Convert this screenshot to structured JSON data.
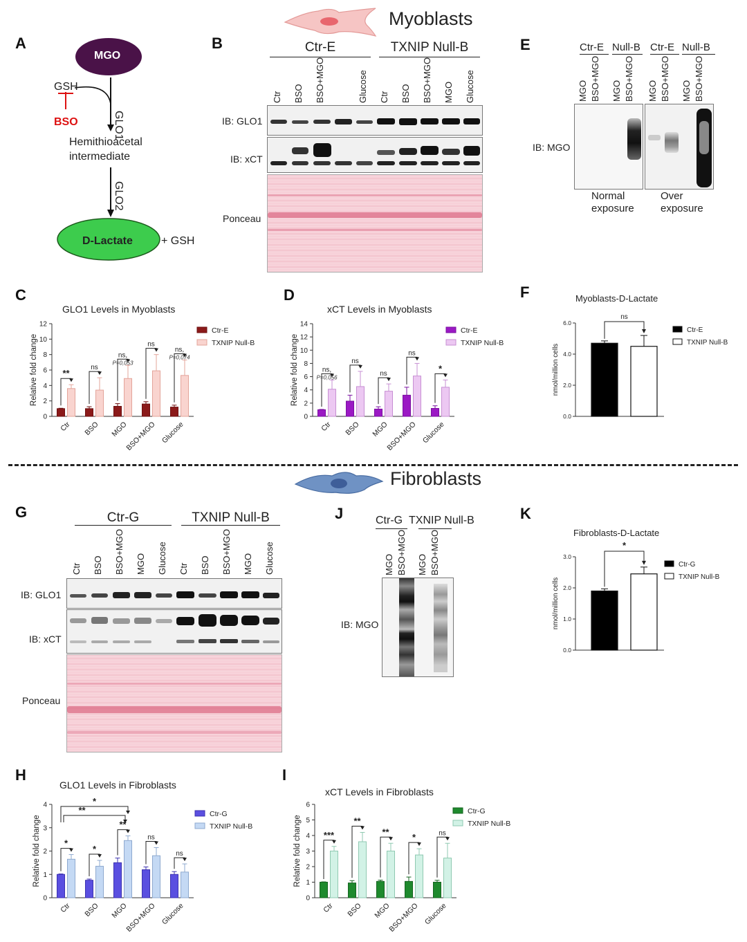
{
  "panelA": {
    "letter": "A",
    "mgo": "MGO",
    "gsh": "GSH",
    "bso": "BSO",
    "glo1": "GLO1",
    "glo2": "GLO2",
    "intermediate_l1": "Hemithioacetal",
    "intermediate_l2": "intermediate",
    "dlactate": "D-Lactate",
    "plus_gsh": "+ GSH"
  },
  "section_myoblasts": "Myoblasts",
  "section_fibroblasts": "Fibroblasts",
  "panelB": {
    "letter": "B",
    "group1": "Ctr-E",
    "group2": "TXNIP Null-B",
    "lanes": [
      "Ctr",
      "BSO",
      "BSO+MGO",
      "",
      "Glucose",
      "Ctr",
      "BSO",
      "BSO+MGO",
      "MGO",
      "Glucose"
    ],
    "ib_glo1": "IB: GLO1",
    "ib_xct": "IB: xCT",
    "ponceau": "Ponceau"
  },
  "panelE": {
    "letter": "E",
    "groups": [
      "Ctr-E",
      "Null-B",
      "Ctr-E",
      "Null-B"
    ],
    "lanes": [
      "MGO",
      "BSO+MGO",
      "MGO",
      "BSO+MGO",
      "MGO",
      "BSO+MGO",
      "MGO",
      "BSO+MGO"
    ],
    "ib_mgo": "IB: MGO",
    "cap1_l1": "Normal",
    "cap1_l2": "exposure",
    "cap2_l1": "Over",
    "cap2_l2": "exposure"
  },
  "panelG": {
    "letter": "G",
    "group1": "Ctr-G",
    "group2": "TXNIP Null-B",
    "lanes": [
      "Ctr",
      "BSO",
      "BSO+MGO",
      "MGO",
      "Glucose",
      "Ctr",
      "BSO",
      "BSO+MGO",
      "MGO",
      "Glucose"
    ],
    "ib_glo1": "IB: GLO1",
    "ib_xct": "IB: xCT",
    "ponceau": "Ponceau"
  },
  "panelJ": {
    "letter": "J",
    "group1": "Ctr-G",
    "group2": "TXNIP Null-B",
    "lanes": [
      "MGO",
      "BSO+MGO",
      "MGO",
      "BSO+MGO"
    ],
    "ib_mgo": "IB: MGO"
  },
  "chart_data": [
    {
      "panel": "C",
      "type": "bar",
      "title": "GLO1 Levels in Myoblasts",
      "ylabel": "Relative fold change",
      "ylim": [
        0,
        12
      ],
      "yticks": [
        0,
        2,
        4,
        6,
        8,
        10,
        12
      ],
      "categories": [
        "Ctr",
        "BSO",
        "MGO",
        "BSO+MGO",
        "Glucose"
      ],
      "series": [
        {
          "name": "Ctr-E",
          "color": "#8b1a1a",
          "edge": "#6e1010",
          "values": [
            1,
            1,
            1.3,
            1.6,
            1.2
          ],
          "errors": [
            0.05,
            0.25,
            0.35,
            0.3,
            0.25
          ]
        },
        {
          "name": "TXNIP Null-B",
          "color": "#f9d4cf",
          "edge": "#e3a49a",
          "values": [
            3.6,
            3.4,
            4.9,
            5.9,
            5.3
          ],
          "errors": [
            0.5,
            1.6,
            1.7,
            2.1,
            2.0
          ]
        }
      ],
      "significance": [
        "**",
        "ns",
        "ns,",
        "ns",
        "ns,"
      ],
      "pvalues": [
        "",
        "",
        "P=0,053",
        "",
        "P=0,074"
      ]
    },
    {
      "panel": "D",
      "type": "bar",
      "title": "xCT Levels in Myoblasts",
      "ylabel": "Relative fold change",
      "ylim": [
        0,
        14
      ],
      "yticks": [
        0,
        2,
        4,
        6,
        8,
        10,
        12,
        14
      ],
      "categories": [
        "Ctr",
        "BSO",
        "MGO",
        "BSO+MGO",
        "Glucose"
      ],
      "series": [
        {
          "name": "Ctr-E",
          "color": "#9b19c4",
          "edge": "#7a0fa0",
          "values": [
            1,
            2.3,
            1.1,
            3.2,
            1.2
          ],
          "errors": [
            0.05,
            0.9,
            0.35,
            1.2,
            0.4
          ]
        },
        {
          "name": "TXNIP Null-B",
          "color": "#ecc8f2",
          "edge": "#c78fd3",
          "values": [
            4.1,
            4.5,
            3.8,
            6.1,
            4.4
          ],
          "errors": [
            1.4,
            2.3,
            1.1,
            1.9,
            1.1
          ]
        }
      ],
      "significance": [
        "ns,",
        "ns",
        "ns",
        "ns",
        "*"
      ],
      "pvalues": [
        "P=0,056",
        "",
        "",
        "",
        ""
      ]
    },
    {
      "panel": "F",
      "type": "bar",
      "title": "Myoblasts-D-Lactate",
      "ylabel": "nmol/million cells",
      "ylim": [
        0,
        6
      ],
      "yticks": [
        0,
        2,
        4,
        6
      ],
      "ytick_labels": [
        "0.0",
        "2.0",
        "4.0",
        "6.0"
      ],
      "categories": [
        "Ctr-E",
        "TXNIP Null-B"
      ],
      "values": [
        4.7,
        4.5
      ],
      "errors": [
        0.15,
        0.7
      ],
      "colors": [
        "#000000",
        "#ffffff"
      ],
      "significance": "ns"
    },
    {
      "panel": "K",
      "type": "bar",
      "title": "Fibroblasts-D-Lactate",
      "ylabel": "nmol/million cells",
      "ylim": [
        0,
        3
      ],
      "yticks": [
        0,
        1,
        2,
        3
      ],
      "ytick_labels": [
        "0.0",
        "1.0",
        "2.0",
        "3.0"
      ],
      "categories": [
        "Ctr-G",
        "TXNIP Null-B"
      ],
      "values": [
        1.9,
        2.45
      ],
      "errors": [
        0.07,
        0.22
      ],
      "colors": [
        "#000000",
        "#ffffff"
      ],
      "significance": "*"
    },
    {
      "panel": "H",
      "type": "bar",
      "title": "GLO1 Levels in Fibroblasts",
      "ylabel": "Relative fold change",
      "ylim": [
        0,
        4
      ],
      "yticks": [
        0,
        1,
        2,
        3,
        4
      ],
      "categories": [
        "Ctr",
        "BSO",
        "MGO",
        "BSO+MGO",
        "Glucose"
      ],
      "series": [
        {
          "name": "Ctr-G",
          "color": "#5a4fe0",
          "edge": "#3c32b0",
          "values": [
            1,
            0.75,
            1.5,
            1.2,
            1.0
          ],
          "errors": [
            0.02,
            0.05,
            0.2,
            0.12,
            0.12
          ]
        },
        {
          "name": "TXNIP Null-B",
          "color": "#c4d9f4",
          "edge": "#8ea9cf",
          "values": [
            1.65,
            1.35,
            2.45,
            1.8,
            1.1
          ],
          "errors": [
            0.2,
            0.25,
            0.2,
            0.35,
            0.35
          ]
        }
      ],
      "significance": [
        "*",
        "*",
        "**",
        "ns",
        "ns"
      ],
      "cross_comparisons": [
        "*",
        "**"
      ]
    },
    {
      "panel": "I",
      "type": "bar",
      "title": "xCT Levels in Fibroblasts",
      "ylabel": "Relative fold change",
      "ylim": [
        0,
        6
      ],
      "yticks": [
        0,
        1,
        2,
        3,
        4,
        5,
        6
      ],
      "categories": [
        "Ctr",
        "BSO",
        "MGO",
        "BSO+MGO",
        "Glucose"
      ],
      "series": [
        {
          "name": "Ctr-G",
          "color": "#1f8a2e",
          "edge": "#156420",
          "values": [
            1,
            0.95,
            1.05,
            1.05,
            1.0
          ],
          "errors": [
            0.02,
            0.15,
            0.08,
            0.28,
            0.12
          ]
        },
        {
          "name": "TXNIP Null-B",
          "color": "#d2f2e6",
          "edge": "#8fc9b1",
          "values": [
            3.0,
            3.6,
            3.0,
            2.75,
            2.55
          ],
          "errors": [
            0.3,
            0.6,
            0.5,
            0.4,
            0.95
          ]
        }
      ],
      "significance": [
        "***",
        "**",
        "**",
        "*",
        "ns"
      ]
    }
  ]
}
